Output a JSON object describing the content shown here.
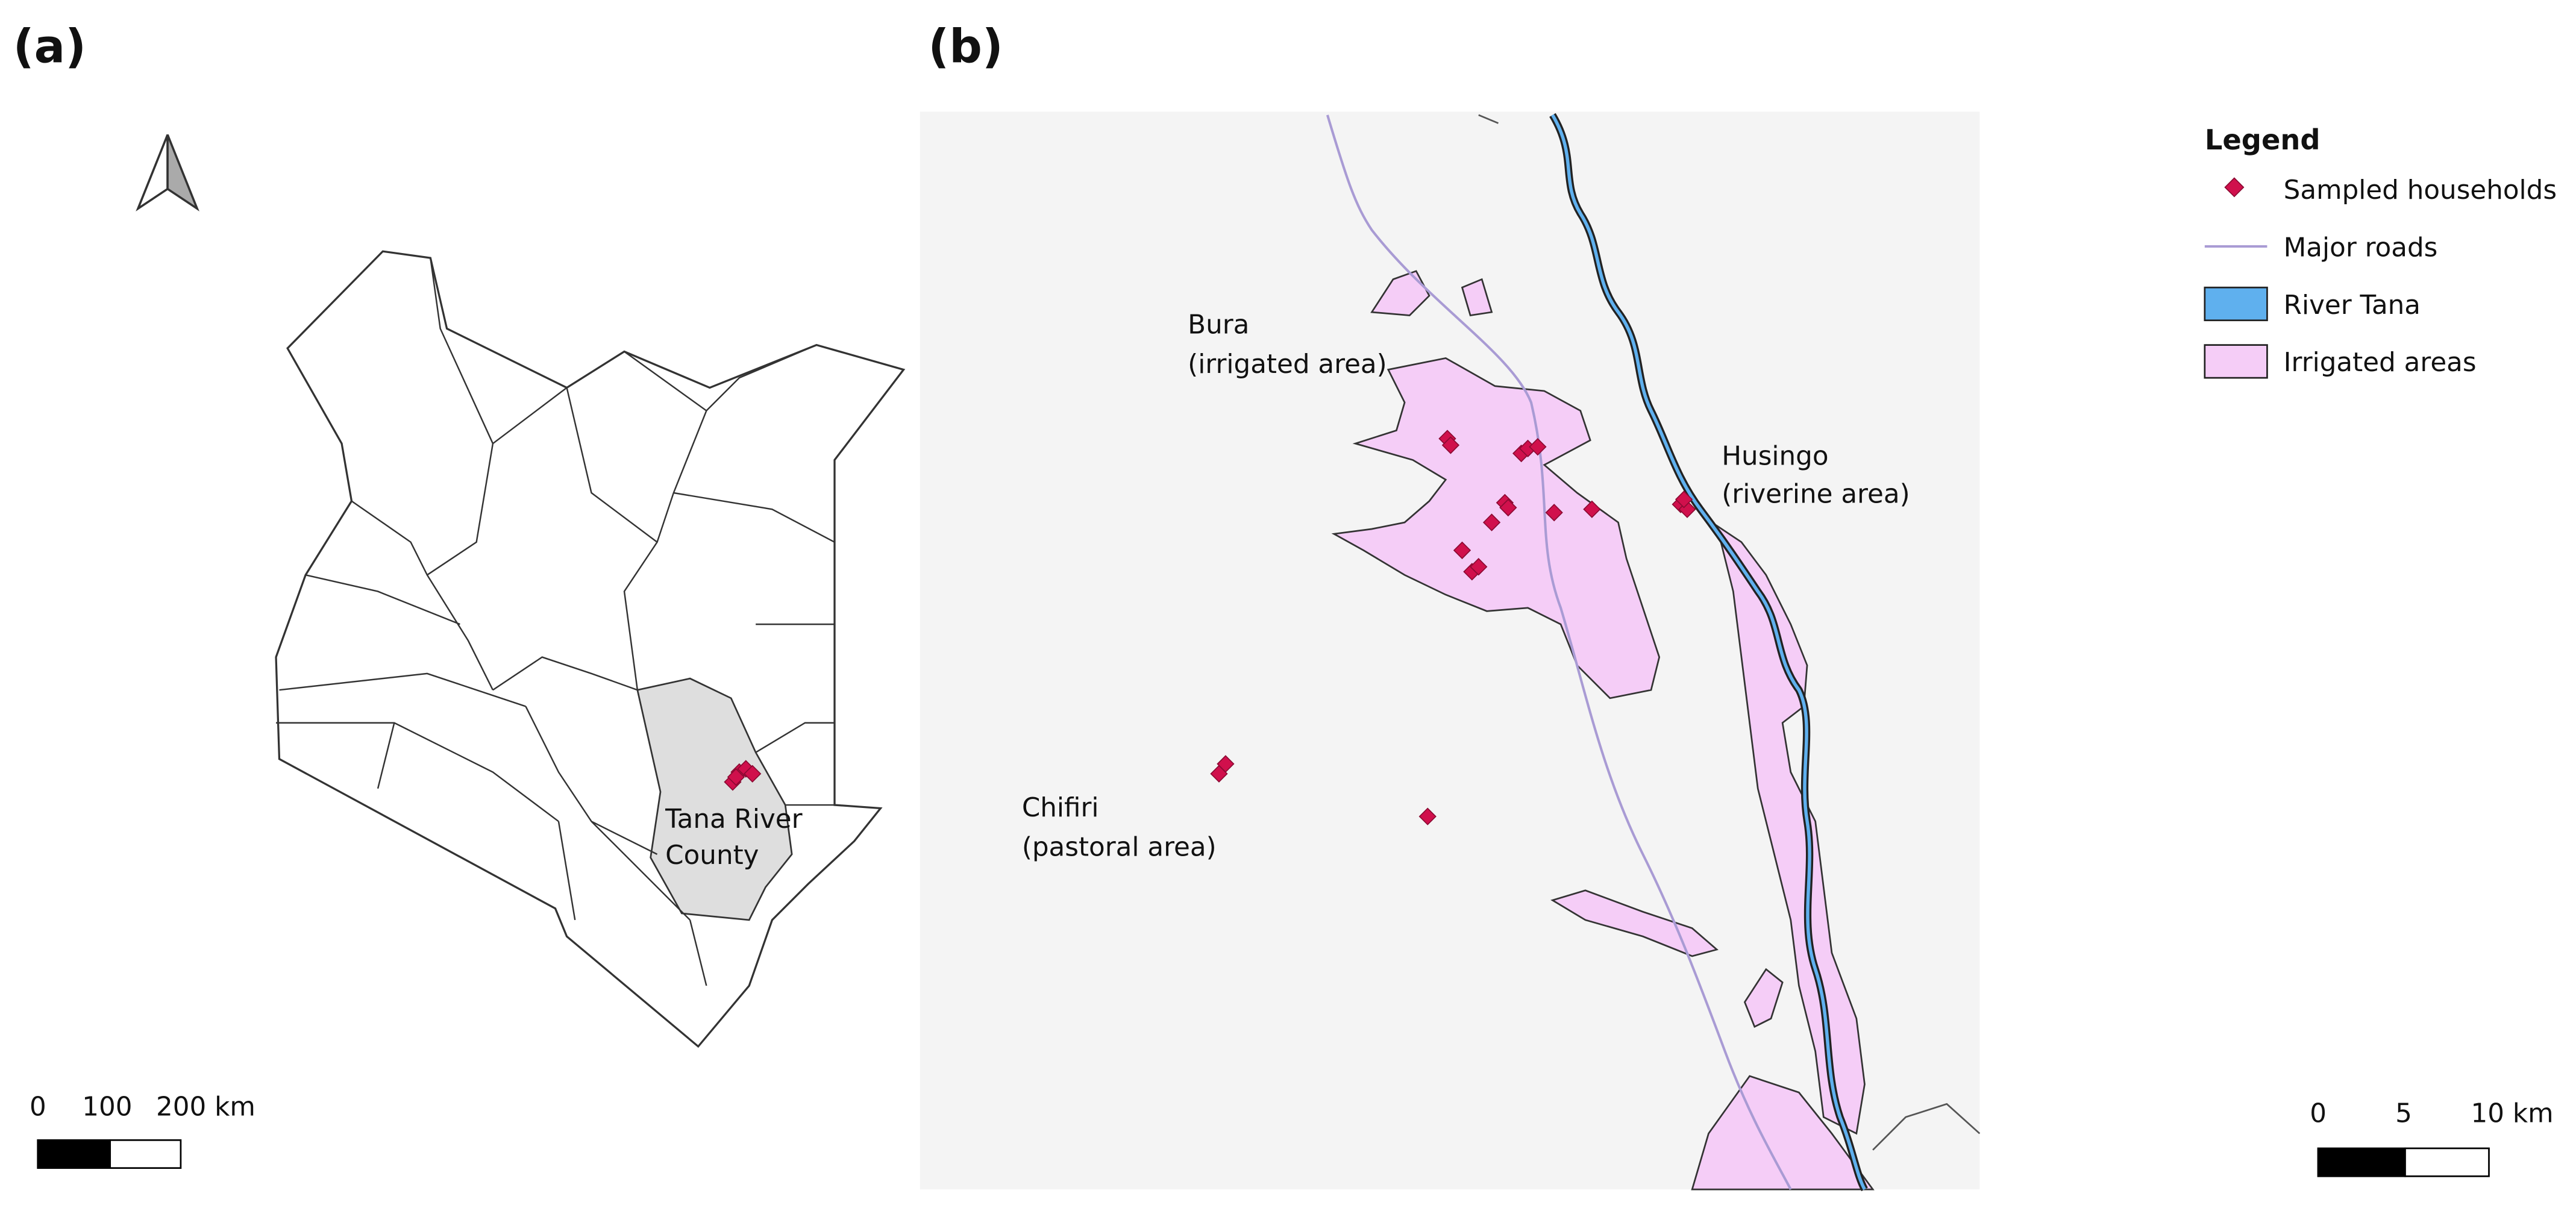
{
  "panels": [
    {
      "label": "(a)",
      "county_label": [
        "Tana River",
        "County"
      ],
      "scale_labels": [
        "0",
        "100",
        "200 km"
      ]
    },
    {
      "label": "(b)",
      "place_labels": [
        {
          "lines": [
            "Bura",
            "(irrigated area)"
          ]
        },
        {
          "lines": [
            "Husingo",
            "(riverine area)"
          ]
        },
        {
          "lines": [
            "Chifiri",
            "(pastoral area)"
          ]
        }
      ],
      "scale_labels": [
        "0",
        "5",
        "10 km"
      ]
    }
  ],
  "legend": {
    "title": "Legend",
    "items": [
      "Sampled households",
      "Major roads",
      "River Tana",
      "Irrigated areas"
    ]
  }
}
